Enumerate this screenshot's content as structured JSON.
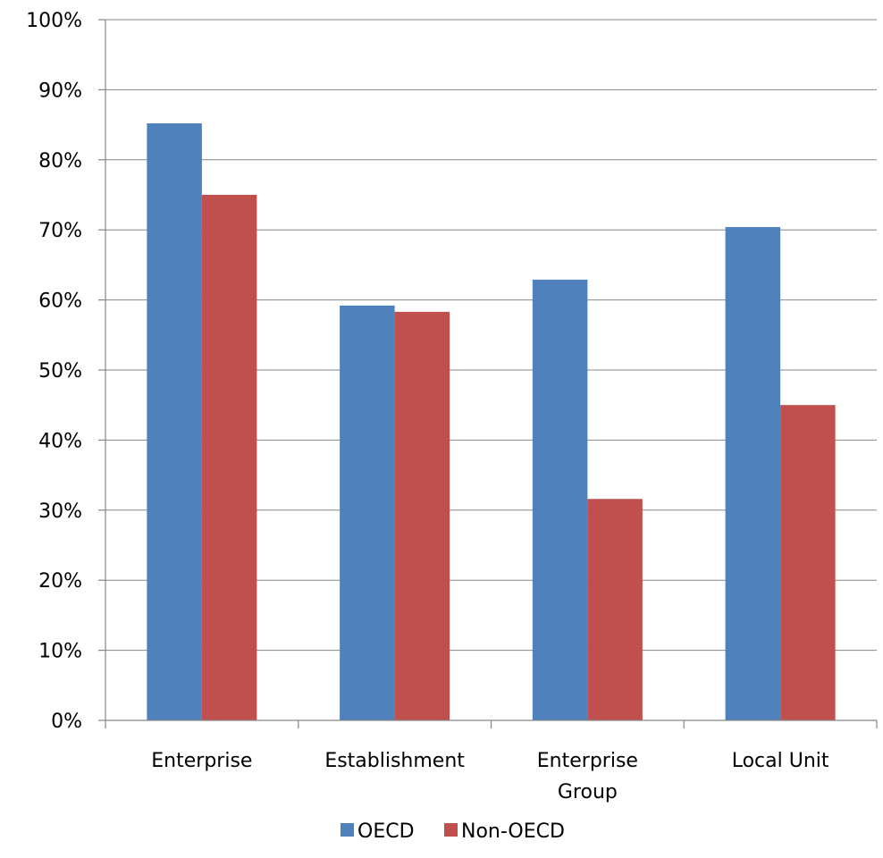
{
  "chart_data": {
    "type": "bar",
    "title": "",
    "xlabel": "",
    "ylabel": "",
    "categories": [
      [
        "Enterprise"
      ],
      [
        "Establishment"
      ],
      [
        "Enterprise",
        "Group"
      ],
      [
        "Local Unit"
      ]
    ],
    "series": [
      {
        "name": "OECD",
        "color": "#4F81BD",
        "values": [
          85.2,
          59.2,
          62.9,
          70.4
        ]
      },
      {
        "name": "Non-OECD",
        "color": "#C0504D",
        "values": [
          75.0,
          58.3,
          31.6,
          45.0
        ]
      }
    ],
    "ylim": [
      0,
      100
    ],
    "yticks": [
      0,
      10,
      20,
      30,
      40,
      50,
      60,
      70,
      80,
      90,
      100
    ],
    "ytick_labels": [
      "0%",
      "10%",
      "20%",
      "30%",
      "40%",
      "50%",
      "60%",
      "70%",
      "80%",
      "90%",
      "100%"
    ],
    "grid": true,
    "legend_position": "bottom"
  }
}
